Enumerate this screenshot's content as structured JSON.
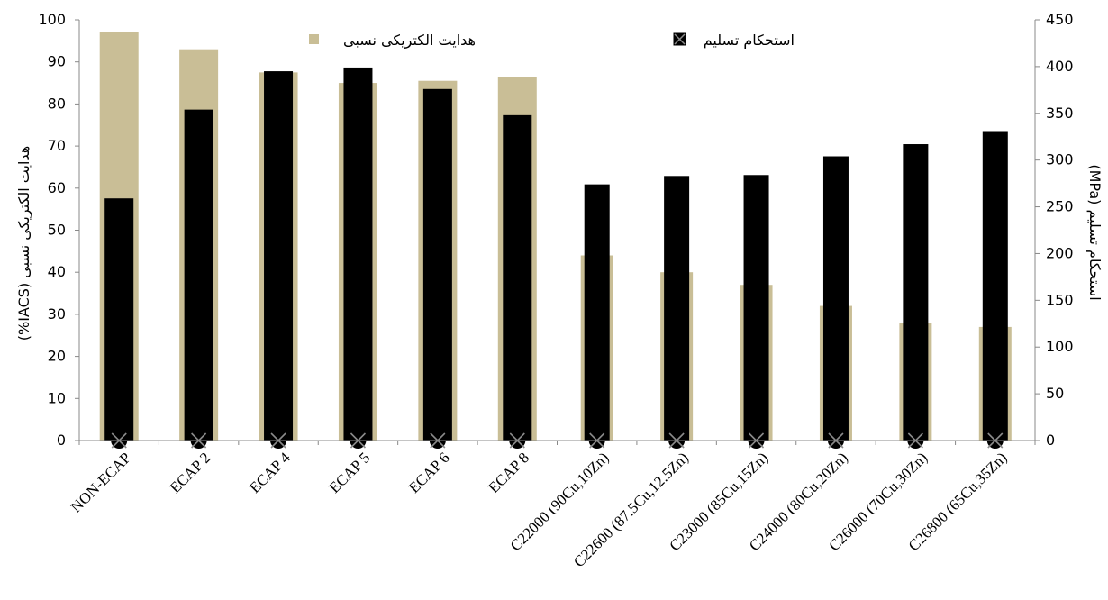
{
  "chart_data": {
    "type": "bar",
    "categories": [
      "NON-ECAP",
      "ECAP 2",
      "ECAP 4",
      "ECAP 5",
      "ECAP 6",
      "ECAP 8",
      "C22000 (90Cu,10Zn)",
      "C22600 (87.5Cu,12.5Zn)",
      "C23000 (85Cu,15Zn)",
      "C24000 (80Cu,20Zn)",
      "C26000 (70Cu,30Zn)",
      "C26800 (65Cu,35Zn)"
    ],
    "series": [
      {
        "name": "هدایت الکتریکی نسبی",
        "axis": "left",
        "color": "#c9be96",
        "values": [
          97,
          93,
          87.5,
          85,
          85.5,
          86.5,
          44,
          40,
          37,
          32,
          28,
          27
        ]
      },
      {
        "name": "استحکام تسلیم",
        "axis": "right",
        "color": "#000000",
        "values": [
          259,
          354,
          395,
          399,
          376,
          348,
          274,
          283,
          284,
          304,
          317,
          331
        ]
      }
    ],
    "ylabel_left": "هدایت الکتریکی نسبی (IACS%)",
    "ylabel_right": "استحکام تسلیم (MPa)",
    "ylim_left": [
      0,
      100
    ],
    "ylim_right": [
      0,
      450
    ],
    "yticks_left": [
      0,
      10,
      20,
      30,
      40,
      50,
      60,
      70,
      80,
      90,
      100
    ],
    "yticks_right": [
      0,
      50,
      100,
      150,
      200,
      250,
      300,
      350,
      400,
      450
    ],
    "grid": false,
    "legend_position": "top"
  }
}
